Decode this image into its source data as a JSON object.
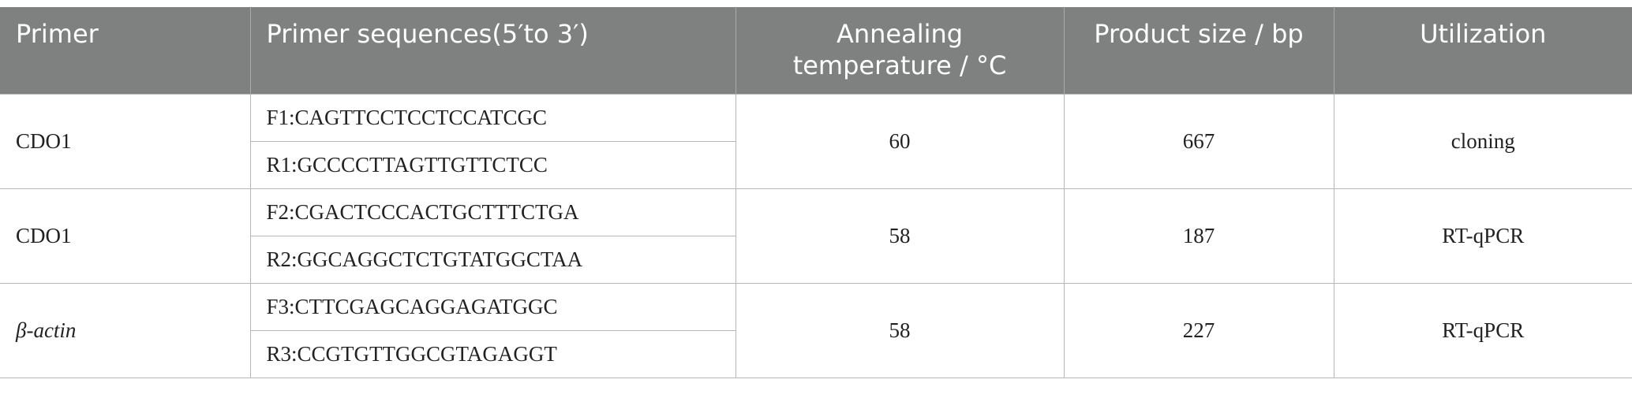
{
  "table": {
    "header": [
      "Primer",
      "Primer sequences(5′to 3′)",
      "Annealing temperature / °C",
      "Product size / bp",
      "Utilization"
    ],
    "rows": [
      {
        "primer": "CDO1",
        "sequences": [
          "F1:CAGTTCCTCCTCCATCGC",
          "R1:GCCCCTTAGTTGTTCTCC"
        ],
        "temperature": 60,
        "size": 667,
        "utilization": "cloning"
      },
      {
        "primer": "CDO1",
        "sequences": [
          "F2:CGACTCCCACTGCTTTCTGA",
          "R2:GGCAGGCTCTGTATGGCTAA"
        ],
        "temperature": 58,
        "size": 187,
        "utilization": "RT-qPCR"
      },
      {
        "primer": "β-actin",
        "sequences": [
          "F3:CTTCGAGCAGGAGATGGC",
          "R3:CCGTGTTGGCGTAGAGGT"
        ],
        "temperature": 58,
        "size": 227,
        "utilization": "RT-qPCR"
      }
    ]
  }
}
